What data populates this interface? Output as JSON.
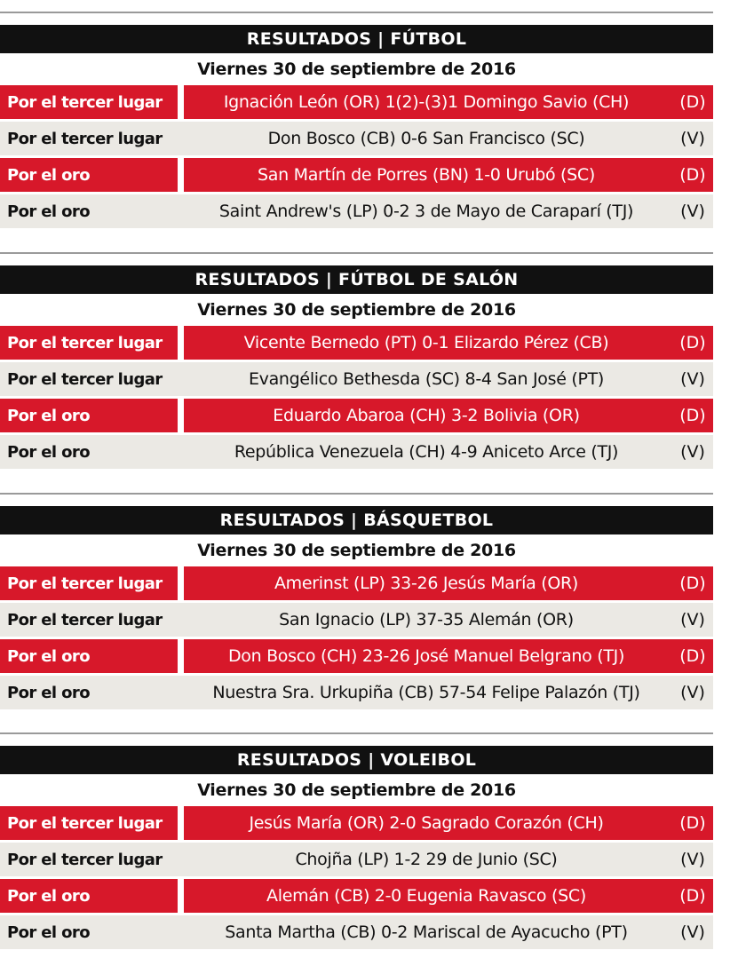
{
  "sections": [
    {
      "header": "RESULTADOS | FÚTBOL",
      "date": "Viernes 30 de septiembre de 2016",
      "rows": [
        {
          "label": "Por el tercer lugar",
          "result": "Ignación León (OR) 1(2)-(3)1 Domingo Savio (CH)",
          "code": "(D)",
          "style": "red"
        },
        {
          "label": "Por el tercer lugar",
          "result": "Don Bosco (CB) 0-6 San Francisco (SC)",
          "code": "(V)",
          "style": "grey"
        },
        {
          "label": "Por el oro",
          "result": "San Martín de Porres (BN) 1-0 Urubó (SC)",
          "code": "(D)",
          "style": "red"
        },
        {
          "label": "Por el oro",
          "result": "Saint Andrew's (LP) 0-2 3 de Mayo de Caraparí (TJ)",
          "code": "(V)",
          "style": "grey"
        }
      ]
    },
    {
      "header": "RESULTADOS | FÚTBOL DE SALÓN",
      "date": "Viernes 30 de septiembre de 2016",
      "rows": [
        {
          "label": "Por el tercer lugar",
          "result": "Vicente Bernedo (PT) 0-1 Elizardo Pérez (CB)",
          "code": "(D)",
          "style": "red"
        },
        {
          "label": "Por el tercer lugar",
          "result": "Evangélico Bethesda (SC) 8-4 San José (PT)",
          "code": "(V)",
          "style": "grey"
        },
        {
          "label": "Por el oro",
          "result": "Eduardo Abaroa (CH) 3-2 Bolivia (OR)",
          "code": "(D)",
          "style": "red"
        },
        {
          "label": "Por el oro",
          "result": "República Venezuela (CH) 4-9 Aniceto Arce (TJ)",
          "code": "(V)",
          "style": "grey"
        }
      ]
    },
    {
      "header": "RESULTADOS | BÁSQUETBOL",
      "date": "Viernes 30 de septiembre de 2016",
      "rows": [
        {
          "label": "Por el tercer lugar",
          "result": "Amerinst (LP) 33-26 Jesús María (OR)",
          "code": "(D)",
          "style": "red"
        },
        {
          "label": "Por el tercer lugar",
          "result": "San Ignacio (LP) 37-35 Alemán (OR)",
          "code": "(V)",
          "style": "grey"
        },
        {
          "label": "Por el oro",
          "result": "Don Bosco (CH) 23-26 José Manuel Belgrano (TJ)",
          "code": "(D)",
          "style": "red"
        },
        {
          "label": "Por el oro",
          "result": "Nuestra Sra. Urkupiña (CB) 57-54 Felipe Palazón (TJ)",
          "code": "(V)",
          "style": "grey"
        }
      ]
    },
    {
      "header": "RESULTADOS | VOLEIBOL",
      "date": "Viernes 30 de septiembre de 2016",
      "rows": [
        {
          "label": "Por el tercer lugar",
          "result": "Jesús María (OR) 2-0 Sagrado Corazón (CH)",
          "code": "(D)",
          "style": "red"
        },
        {
          "label": "Por el tercer lugar",
          "result": "Chojña (LP) 1-2 29 de Junio (SC)",
          "code": "(V)",
          "style": "grey"
        },
        {
          "label": "Por el oro",
          "result": "Alemán (CB) 2-0 Eugenia Ravasco (SC)",
          "code": "(D)",
          "style": "red"
        },
        {
          "label": "Por el oro",
          "result": "Santa Martha (CB) 0-2 Mariscal de Ayacucho (PT)",
          "code": "(V)",
          "style": "grey"
        }
      ]
    }
  ]
}
